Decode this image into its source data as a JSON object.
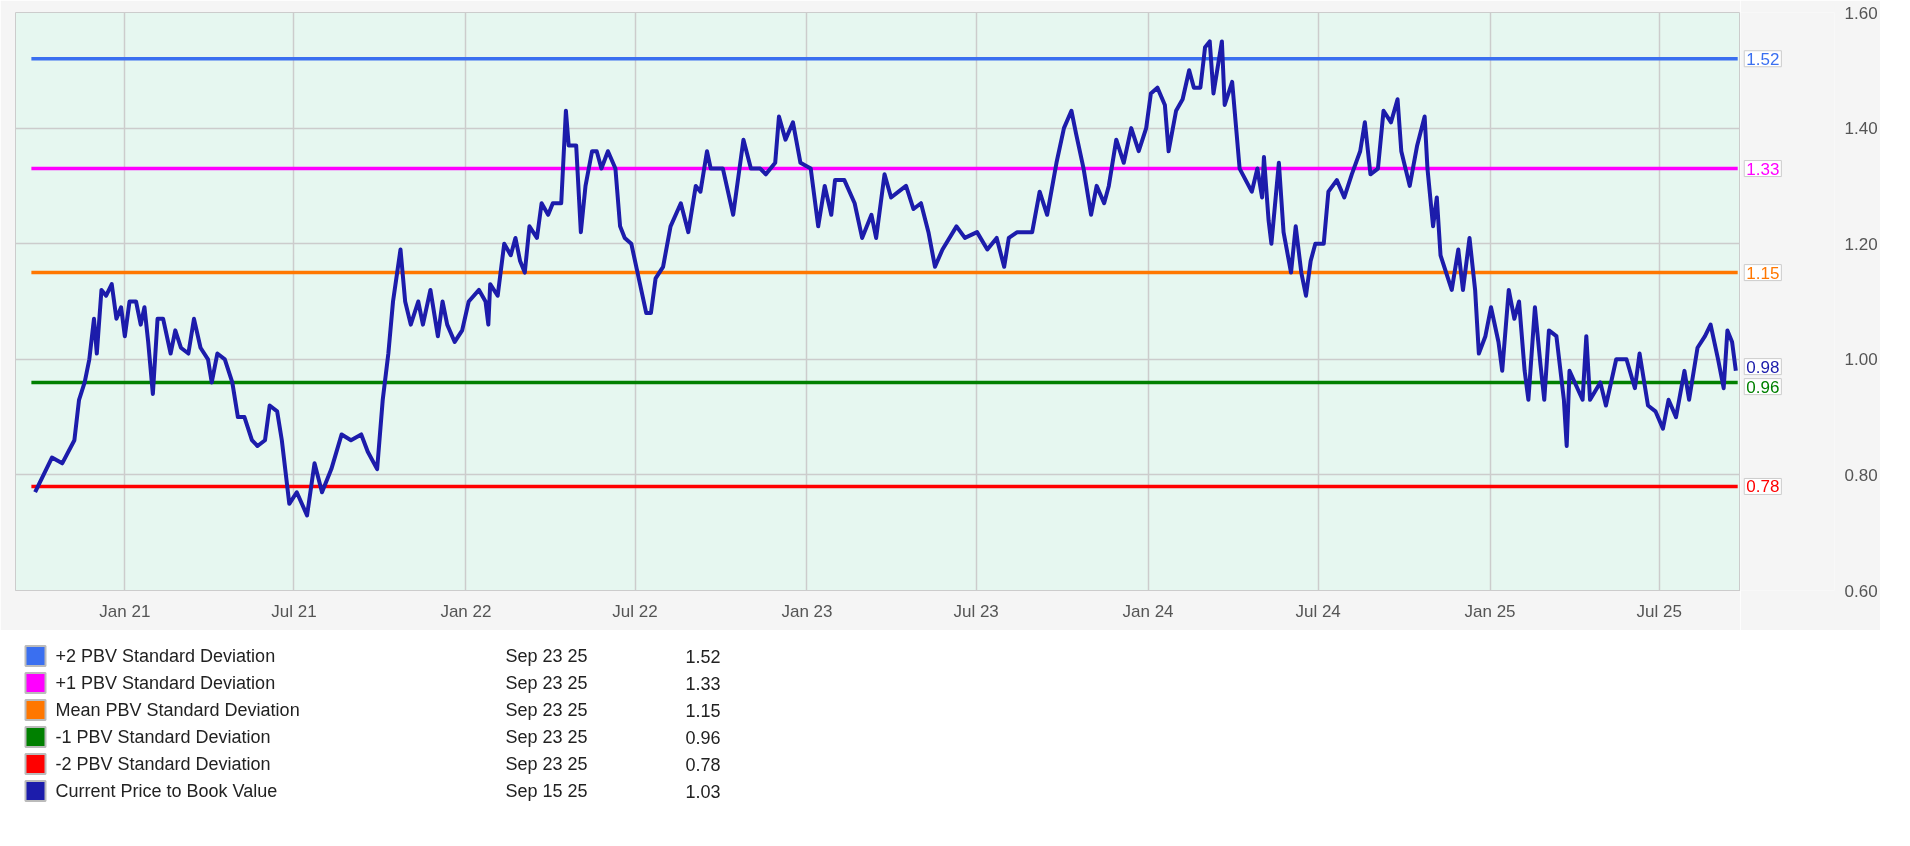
{
  "chart_data": {
    "type": "line",
    "xlim": [
      "2020-09-06",
      "2025-09-26"
    ],
    "xticks": [
      {
        "value": "2021-01-01",
        "label": "Jan 21"
      },
      {
        "value": "2021-07-01",
        "label": "Jul 21"
      },
      {
        "value": "2022-01-01",
        "label": "Jan 22"
      },
      {
        "value": "2022-07-01",
        "label": "Jul 22"
      },
      {
        "value": "2023-01-01",
        "label": "Jan 23"
      },
      {
        "value": "2023-07-01",
        "label": "Jul 23"
      },
      {
        "value": "2024-01-01",
        "label": "Jan 24"
      },
      {
        "value": "2024-07-01",
        "label": "Jul 24"
      },
      {
        "value": "2025-01-01",
        "label": "Jan 25"
      },
      {
        "value": "2025-07-01",
        "label": "Jul 25"
      }
    ],
    "ylim": [
      0.6,
      1.6
    ],
    "yticks": [
      {
        "value": 0.6,
        "label": "0.60"
      },
      {
        "value": 0.8,
        "label": "0.80"
      },
      {
        "value": 1.0,
        "label": "1.00"
      },
      {
        "value": 1.2,
        "label": "1.20"
      },
      {
        "value": 1.4,
        "label": "1.40"
      },
      {
        "value": 1.6,
        "label": "1.60"
      }
    ],
    "grid": true,
    "legend": "bottom left",
    "series": [
      {
        "name": "+2 PBV Standard Deviation",
        "color": "#3a6ff0",
        "x": [
          "2020-09-23",
          "2025-09-23"
        ],
        "values": [
          1.52,
          1.52
        ],
        "value_labels": [
          null,
          "1.52"
        ]
      },
      {
        "name": "+1 PBV Standard Deviation",
        "color": "#ff00ff",
        "x": [
          "2020-09-23",
          "2025-09-23"
        ],
        "values": [
          1.33,
          1.33
        ],
        "value_labels": [
          null,
          "1.33"
        ]
      },
      {
        "name": "Mean PBV Standard Deviation",
        "color": "#ff7700",
        "x": [
          "2020-09-23",
          "2025-09-23"
        ],
        "values": [
          1.15,
          1.15
        ],
        "value_labels": [
          null,
          "1.15"
        ]
      },
      {
        "name": "-1 PBV Standard Deviation",
        "color": "#008000",
        "x": [
          "2020-09-23",
          "2025-09-23"
        ],
        "values": [
          0.96,
          0.96
        ],
        "value_labels": [
          null,
          "0.96"
        ]
      },
      {
        "name": "-2 PBV Standard Deviation",
        "color": "#ff0000",
        "x": [
          "2020-09-23",
          "2025-09-23"
        ],
        "values": [
          0.78,
          0.78
        ],
        "value_labels": [
          null,
          "0.78"
        ]
      },
      {
        "name": "Current Price to Book Value",
        "color": "#1c1cab",
        "x": [
          "2020-09-27",
          "2020-10-15",
          "2020-10-26",
          "2020-11-08",
          "2020-11-13",
          "2020-11-19",
          "2020-11-24",
          "2020-11-29",
          "2020-12-02",
          "2020-12-07",
          "2020-12-12",
          "2020-12-18",
          "2020-12-23",
          "2020-12-28",
          "2021-01-01",
          "2021-01-06",
          "2021-01-13",
          "2021-01-18",
          "2021-01-22",
          "2021-01-26",
          "2021-01-31",
          "2021-02-05",
          "2021-02-11",
          "2021-02-19",
          "2021-02-24",
          "2021-03-02",
          "2021-03-10",
          "2021-03-16",
          "2021-03-23",
          "2021-03-31",
          "2021-04-04",
          "2021-04-10",
          "2021-04-18",
          "2021-04-26",
          "2021-05-02",
          "2021-05-09",
          "2021-05-17",
          "2021-05-23",
          "2021-05-31",
          "2021-06-05",
          "2021-06-13",
          "2021-06-18",
          "2021-06-26",
          "2021-07-04",
          "2021-07-15",
          "2021-07-23",
          "2021-07-31",
          "2021-08-10",
          "2021-08-21",
          "2021-08-31",
          "2021-09-11",
          "2021-09-18",
          "2021-09-28",
          "2021-10-04",
          "2021-10-10",
          "2021-10-15",
          "2021-10-23",
          "2021-10-28",
          "2021-11-03",
          "2021-11-11",
          "2021-11-16",
          "2021-11-24",
          "2021-12-02",
          "2021-12-07",
          "2021-12-12",
          "2021-12-20",
          "2021-12-28",
          "2022-01-04",
          "2022-01-15",
          "2022-01-22",
          "2022-01-25",
          "2022-01-27",
          "2022-02-04",
          "2022-02-11",
          "2022-02-18",
          "2022-02-23",
          "2022-02-28",
          "2022-03-05",
          "2022-03-10",
          "2022-03-18",
          "2022-03-23",
          "2022-03-30",
          "2022-04-04",
          "2022-04-13",
          "2022-04-18",
          "2022-04-21",
          "2022-04-29",
          "2022-05-04",
          "2022-05-09",
          "2022-05-16",
          "2022-05-21",
          "2022-05-26",
          "2022-06-02",
          "2022-06-10",
          "2022-06-15",
          "2022-06-20",
          "2022-06-27",
          "2022-07-05",
          "2022-07-13",
          "2022-07-18",
          "2022-07-23",
          "2022-07-31",
          "2022-08-08",
          "2022-08-19",
          "2022-08-27",
          "2022-09-04",
          "2022-09-09",
          "2022-09-16",
          "2022-09-20",
          "2022-10-03",
          "2022-10-14",
          "2022-10-25",
          "2022-11-02",
          "2022-11-12",
          "2022-11-18",
          "2022-11-28",
          "2022-12-02",
          "2022-12-09",
          "2022-12-17",
          "2022-12-25",
          "2023-01-05",
          "2023-01-13",
          "2023-01-20",
          "2023-01-27",
          "2023-01-31",
          "2023-02-10",
          "2023-02-21",
          "2023-03-01",
          "2023-03-11",
          "2023-03-16",
          "2023-03-25",
          "2023-04-01",
          "2023-04-09",
          "2023-04-17",
          "2023-04-25",
          "2023-05-03",
          "2023-05-11",
          "2023-05-18",
          "2023-05-26",
          "2023-06-10",
          "2023-06-19",
          "2023-07-02",
          "2023-07-13",
          "2023-07-23",
          "2023-07-31",
          "2023-08-05",
          "2023-08-14",
          "2023-08-30",
          "2023-09-07",
          "2023-09-15",
          "2023-09-25",
          "2023-10-03",
          "2023-10-11",
          "2023-10-16",
          "2023-10-24",
          "2023-11-01",
          "2023-11-07",
          "2023-11-15",
          "2023-11-20",
          "2023-11-28",
          "2023-12-06",
          "2023-12-14",
          "2023-12-22",
          "2023-12-30",
          "2024-01-04",
          "2024-01-11",
          "2024-01-19",
          "2024-01-23",
          "2024-01-31",
          "2024-02-07",
          "2024-02-14",
          "2024-02-19",
          "2024-02-26",
          "2024-03-02",
          "2024-03-07",
          "2024-03-11",
          "2024-03-20",
          "2024-03-23",
          "2024-03-31",
          "2024-04-08",
          "2024-04-21",
          "2024-04-27",
          "2024-05-02",
          "2024-05-04",
          "2024-05-09",
          "2024-05-12",
          "2024-05-20",
          "2024-05-25",
          "2024-06-02",
          "2024-06-07",
          "2024-06-13",
          "2024-06-18",
          "2024-06-23",
          "2024-06-28",
          "2024-07-07",
          "2024-07-12",
          "2024-07-21",
          "2024-07-29",
          "2024-08-06",
          "2024-08-15",
          "2024-08-20",
          "2024-08-26",
          "2024-09-03",
          "2024-09-09",
          "2024-09-17",
          "2024-09-24",
          "2024-09-28",
          "2024-10-07",
          "2024-10-15",
          "2024-10-23",
          "2024-10-26",
          "2024-11-01",
          "2024-11-05",
          "2024-11-09",
          "2024-11-15",
          "2024-11-21",
          "2024-11-28",
          "2024-12-03",
          "2024-12-10",
          "2024-12-16",
          "2024-12-20",
          "2024-12-27",
          "2025-01-02",
          "2025-01-10",
          "2025-01-14",
          "2025-01-21",
          "2025-01-27",
          "2025-02-01",
          "2025-02-07",
          "2025-02-11",
          "2025-02-18",
          "2025-02-24",
          "2025-02-28",
          "2025-03-05",
          "2025-03-13",
          "2025-03-21",
          "2025-03-24",
          "2025-03-27",
          "2025-04-10",
          "2025-04-14",
          "2025-04-18",
          "2025-04-29",
          "2025-05-05",
          "2025-05-16",
          "2025-05-27",
          "2025-06-05",
          "2025-06-10",
          "2025-06-19",
          "2025-06-27",
          "2025-07-05",
          "2025-07-11",
          "2025-07-19",
          "2025-07-28",
          "2025-08-02",
          "2025-08-11",
          "2025-08-19",
          "2025-08-25",
          "2025-09-02",
          "2025-09-08",
          "2025-09-12",
          "2025-09-17",
          "2025-09-21"
        ],
        "values": [
          0.77,
          0.83,
          0.82,
          0.86,
          0.93,
          0.96,
          1.0,
          1.07,
          1.01,
          1.12,
          1.11,
          1.13,
          1.07,
          1.09,
          1.04,
          1.1,
          1.1,
          1.06,
          1.09,
          1.03,
          0.94,
          1.07,
          1.07,
          1.01,
          1.05,
          1.02,
          1.01,
          1.07,
          1.02,
          1.0,
          0.96,
          1.01,
          1.0,
          0.96,
          0.9,
          0.9,
          0.86,
          0.85,
          0.86,
          0.92,
          0.91,
          0.86,
          0.75,
          0.77,
          0.73,
          0.82,
          0.77,
          0.81,
          0.87,
          0.86,
          0.87,
          0.84,
          0.81,
          0.93,
          1.01,
          1.1,
          1.19,
          1.1,
          1.06,
          1.1,
          1.06,
          1.12,
          1.04,
          1.1,
          1.06,
          1.03,
          1.05,
          1.1,
          1.12,
          1.1,
          1.06,
          1.13,
          1.11,
          1.2,
          1.18,
          1.21,
          1.17,
          1.15,
          1.23,
          1.21,
          1.27,
          1.25,
          1.27,
          1.27,
          1.43,
          1.37,
          1.37,
          1.22,
          1.3,
          1.36,
          1.36,
          1.33,
          1.36,
          1.33,
          1.23,
          1.21,
          1.2,
          1.14,
          1.08,
          1.08,
          1.14,
          1.16,
          1.23,
          1.27,
          1.22,
          1.3,
          1.29,
          1.36,
          1.33,
          1.33,
          1.25,
          1.38,
          1.33,
          1.33,
          1.32,
          1.34,
          1.42,
          1.38,
          1.41,
          1.34,
          1.33,
          1.23,
          1.3,
          1.25,
          1.31,
          1.31,
          1.27,
          1.21,
          1.25,
          1.21,
          1.32,
          1.28,
          1.29,
          1.3,
          1.26,
          1.27,
          1.22,
          1.16,
          1.19,
          1.23,
          1.21,
          1.22,
          1.19,
          1.21,
          1.16,
          1.21,
          1.22,
          1.22,
          1.29,
          1.25,
          1.34,
          1.4,
          1.43,
          1.39,
          1.33,
          1.25,
          1.3,
          1.27,
          1.3,
          1.38,
          1.34,
          1.4,
          1.36,
          1.4,
          1.46,
          1.47,
          1.44,
          1.36,
          1.43,
          1.45,
          1.5,
          1.47,
          1.47,
          1.54,
          1.55,
          1.46,
          1.55,
          1.44,
          1.48,
          1.33,
          1.29,
          1.33,
          1.28,
          1.35,
          1.24,
          1.2,
          1.34,
          1.22,
          1.15,
          1.23,
          1.15,
          1.11,
          1.17,
          1.2,
          1.2,
          1.29,
          1.31,
          1.28,
          1.32,
          1.36,
          1.41,
          1.32,
          1.33,
          1.43,
          1.41,
          1.45,
          1.36,
          1.3,
          1.37,
          1.42,
          1.33,
          1.23,
          1.28,
          1.18,
          1.15,
          1.12,
          1.19,
          1.12,
          1.21,
          1.12,
          1.01,
          1.04,
          1.09,
          1.03,
          0.98,
          1.12,
          1.07,
          1.1,
          0.98,
          0.93,
          1.09,
          0.99,
          0.93,
          1.05,
          1.04,
          0.93,
          0.85,
          0.98,
          0.93,
          1.04,
          0.93,
          0.96,
          0.92,
          1.0,
          1.0,
          0.95,
          1.01,
          0.92,
          0.91,
          0.88,
          0.93,
          0.9,
          0.98,
          0.93,
          1.02,
          1.04,
          1.06,
          1.0,
          0.95,
          1.05,
          1.03,
          0.98
        ]
      }
    ],
    "annotations": [
      "Sep 23 25",
      "1.52",
      "Sep 23 25",
      "1.33",
      "Sep 23 25",
      "1.15",
      "Sep 23 25",
      "0.96",
      "Sep 23 25",
      "0.78",
      "Sep 15 25",
      "1.03",
      {
        "text": "0.98",
        "x": "2025-09-21",
        "y": 0.98
      }
    ]
  }
}
